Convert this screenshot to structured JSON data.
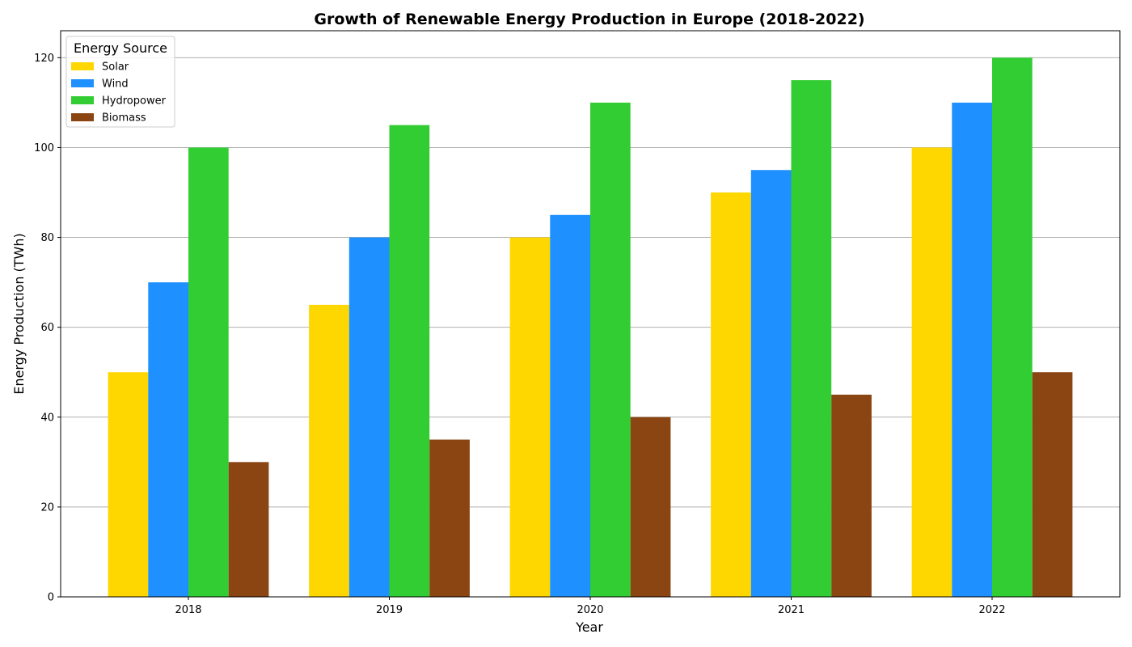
{
  "chart_data": {
    "type": "bar",
    "title": "Growth of Renewable Energy Production in Europe (2018-2022)",
    "xlabel": "Year",
    "ylabel": "Energy Production (TWh)",
    "categories": [
      "2018",
      "2019",
      "2020",
      "2021",
      "2022"
    ],
    "series": [
      {
        "name": "Solar",
        "color": "#FFD700",
        "values": [
          50,
          65,
          80,
          90,
          100
        ]
      },
      {
        "name": "Wind",
        "color": "#1E90FF",
        "values": [
          70,
          80,
          85,
          95,
          110
        ]
      },
      {
        "name": "Hydropower",
        "color": "#32CD32",
        "values": [
          100,
          105,
          110,
          115,
          120
        ]
      },
      {
        "name": "Biomass",
        "color": "#8B4513",
        "values": [
          30,
          35,
          40,
          45,
          50
        ]
      }
    ],
    "ylim": [
      0,
      126
    ],
    "yticks": [
      0,
      20,
      40,
      60,
      80,
      100,
      120
    ],
    "grid": "y",
    "legend": {
      "title": "Energy Source",
      "position": "top-left"
    }
  }
}
